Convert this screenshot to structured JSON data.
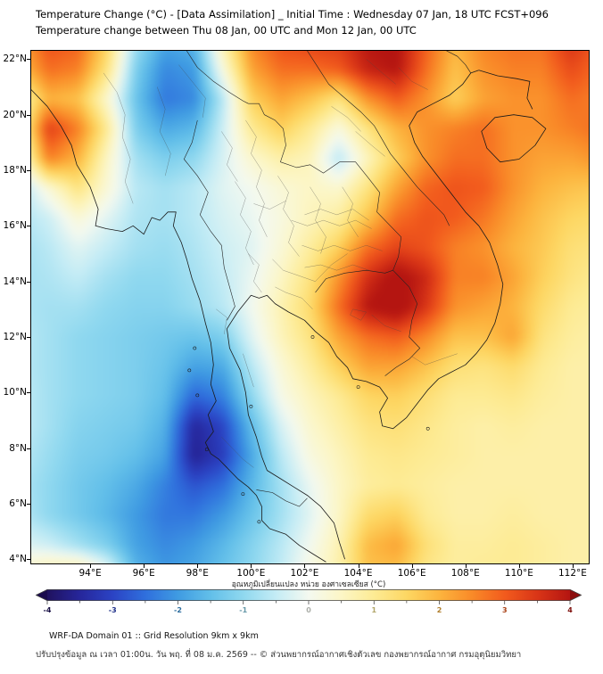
{
  "header": {
    "title": "Temperature Change (°C) - [Data Assimilation] _ Initial Time : Wednesday 07 Jan, 18 UTC FCST+096",
    "subtitle": "Temperature change between Thu 08 Jan, 00 UTC and Mon 12 Jan, 00 UTC"
  },
  "axes": {
    "lat_labels": [
      "22°N",
      "20°N",
      "18°N",
      "16°N",
      "14°N",
      "12°N",
      "10°N",
      "8°N",
      "6°N",
      "4°N"
    ],
    "lat_values": [
      22,
      20,
      18,
      16,
      14,
      12,
      10,
      8,
      6,
      4
    ],
    "lon_labels": [
      "94°E",
      "96°E",
      "98°E",
      "100°E",
      "102°E",
      "104°E",
      "106°E",
      "108°E",
      "110°E",
      "112°E"
    ],
    "lon_values": [
      94,
      96,
      98,
      100,
      102,
      104,
      106,
      108,
      110,
      112
    ]
  },
  "colorbar": {
    "label": "อุณหภูมิเปลี่ยนแปลง หน่วย องศาเซลเซียส (°C)",
    "min": -4,
    "max": 4,
    "major_ticks": [
      -4,
      -3,
      -2,
      -1,
      0,
      1,
      2,
      3,
      4
    ],
    "minor_tick_step": 0.5,
    "extend_low_color": "#1a0b4e",
    "extend_high_color": "#8c0d0d"
  },
  "footer": {
    "line1": "WRF-DA Domain 01 :: Grid Resolution 9km x 9km",
    "line2": "ปรับปรุงข้อมูล ณ เวลา 01:00น. วัน พฤ. ที่ 08 ม.ค. 2569 -- © ส่วนพยากรณ์อากาศเชิงตัวเลข กองพยากรณ์อากาศ กรมอุตุนิยมวิทยา"
  },
  "chart_data": {
    "type": "heatmap",
    "title": "Temperature change between Thu 08 Jan, 00 UTC and Mon 12 Jan, 00 UTC",
    "units": "°C",
    "value_range": [
      -4,
      4
    ],
    "extent": {
      "lon_min": 91.8,
      "lon_max": 112.6,
      "lat_min": 3.85,
      "lat_max": 22.3
    },
    "lon": [
      92,
      93,
      94,
      95,
      96,
      97,
      98,
      99,
      100,
      101,
      102,
      103,
      104,
      105,
      106,
      107,
      108,
      109,
      110,
      111,
      112
    ],
    "lat": [
      22,
      21,
      20,
      19,
      18,
      17,
      16,
      15,
      14,
      13,
      12,
      11,
      10,
      9,
      8,
      7,
      6,
      5,
      4
    ],
    "values": [
      [
        2.2,
        3.2,
        3.0,
        1.6,
        -0.8,
        -1.8,
        -1.6,
        0.8,
        2.6,
        3.2,
        3.4,
        3.5,
        4.0,
        4.1,
        3.0,
        2.0,
        2.6,
        2.8,
        2.8,
        3.6,
        3.0
      ],
      [
        1.8,
        2.8,
        2.6,
        1.2,
        -1.2,
        -2.2,
        -2.0,
        0.2,
        2.2,
        2.8,
        2.8,
        3.0,
        3.8,
        4.0,
        2.8,
        1.8,
        2.4,
        2.6,
        2.6,
        3.2,
        2.8
      ],
      [
        0.6,
        2.0,
        1.8,
        0.4,
        -1.4,
        -2.4,
        -2.2,
        -0.6,
        1.6,
        2.2,
        1.8,
        1.2,
        2.4,
        3.0,
        2.4,
        1.6,
        2.2,
        2.4,
        2.4,
        2.8,
        2.6
      ],
      [
        0.5,
        3.4,
        2.6,
        1.0,
        -1.2,
        -1.8,
        -1.6,
        -0.4,
        1.0,
        1.6,
        1.0,
        0.2,
        1.2,
        2.0,
        2.4,
        2.6,
        2.8,
        2.4,
        2.4,
        2.6,
        2.8
      ],
      [
        0.0,
        2.6,
        2.0,
        0.5,
        -0.8,
        -1.2,
        -1.0,
        -0.3,
        0.4,
        0.8,
        0.6,
        -0.6,
        0.6,
        1.6,
        2.4,
        2.8,
        2.8,
        2.4,
        2.2,
        2.2,
        2.4
      ],
      [
        -0.7,
        0.3,
        1.2,
        0.3,
        -0.6,
        -0.8,
        -0.6,
        -0.2,
        0.0,
        0.3,
        0.5,
        0.4,
        1.2,
        2.2,
        2.9,
        3.1,
        3.0,
        2.4,
        2.0,
        1.8,
        1.7
      ],
      [
        -0.7,
        -0.4,
        0.3,
        -0.2,
        -0.7,
        -0.8,
        -0.6,
        -0.3,
        -0.1,
        0.2,
        0.6,
        0.9,
        1.8,
        2.8,
        3.1,
        3.0,
        2.7,
        2.2,
        1.8,
        1.5,
        1.4
      ],
      [
        -0.8,
        -0.6,
        -0.2,
        -0.5,
        -0.8,
        -0.9,
        -0.7,
        -0.4,
        -0.2,
        0.3,
        0.9,
        1.6,
        2.8,
        3.3,
        3.1,
        2.6,
        2.4,
        2.0,
        1.7,
        1.3,
        1.2
      ],
      [
        -0.8,
        -0.7,
        -0.5,
        -0.8,
        -1.0,
        -1.0,
        -0.8,
        -0.5,
        -0.1,
        0.5,
        1.2,
        2.4,
        3.6,
        4.2,
        3.7,
        2.6,
        2.6,
        2.2,
        1.6,
        1.2,
        1.0
      ],
      [
        -0.7,
        -0.8,
        -0.8,
        -1.0,
        -1.1,
        -1.1,
        -0.9,
        -0.6,
        0.0,
        0.7,
        1.4,
        2.8,
        4.0,
        4.3,
        3.5,
        2.4,
        2.2,
        2.0,
        1.4,
        1.0,
        0.9
      ],
      [
        -0.6,
        -0.8,
        -1.0,
        -1.1,
        -1.2,
        -1.3,
        -1.4,
        -1.2,
        -0.2,
        0.6,
        1.2,
        2.2,
        2.8,
        3.0,
        2.5,
        1.8,
        1.8,
        2.2,
        1.2,
        0.9,
        0.8
      ],
      [
        -0.6,
        -0.8,
        -1.0,
        -1.1,
        -1.2,
        -1.4,
        -1.9,
        -1.8,
        -0.6,
        0.3,
        0.9,
        1.6,
        2.2,
        2.2,
        1.8,
        1.3,
        1.2,
        1.4,
        1.0,
        0.8,
        0.8
      ],
      [
        -0.5,
        -0.8,
        -1.0,
        -1.1,
        -1.2,
        -1.5,
        -2.6,
        -2.3,
        -1.0,
        0.1,
        0.6,
        1.0,
        1.5,
        1.6,
        1.3,
        1.0,
        1.0,
        1.1,
        0.9,
        0.8,
        0.8
      ],
      [
        -0.5,
        -0.8,
        -1.1,
        -1.2,
        -1.3,
        -1.7,
        -3.5,
        -3.0,
        -1.5,
        -0.3,
        0.4,
        0.8,
        1.2,
        1.3,
        1.1,
        0.9,
        0.8,
        0.9,
        0.8,
        0.8,
        0.8
      ],
      [
        -0.6,
        -0.9,
        -1.2,
        -1.3,
        -1.5,
        -1.9,
        -3.6,
        -3.1,
        -1.8,
        -0.6,
        0.2,
        0.6,
        1.0,
        1.1,
        1.0,
        0.9,
        0.8,
        0.8,
        0.8,
        0.8,
        0.8
      ],
      [
        -0.7,
        -1.0,
        -1.3,
        -1.5,
        -1.8,
        -2.3,
        -2.8,
        -2.5,
        -1.6,
        -0.8,
        -0.1,
        0.5,
        0.9,
        1.0,
        0.9,
        0.8,
        0.8,
        0.8,
        0.8,
        0.8,
        0.8
      ],
      [
        -0.6,
        -1.0,
        -1.3,
        -1.6,
        -2.0,
        -2.4,
        -2.4,
        -2.0,
        -1.4,
        -0.8,
        -0.2,
        0.5,
        1.4,
        1.6,
        1.0,
        0.8,
        0.8,
        0.9,
        0.8,
        0.8,
        0.8
      ],
      [
        -0.2,
        -0.4,
        -0.8,
        -1.2,
        -1.9,
        -2.2,
        -2.0,
        -1.6,
        -1.1,
        -0.6,
        0.0,
        0.7,
        1.9,
        2.2,
        1.3,
        0.9,
        0.9,
        1.0,
        0.9,
        0.8,
        0.8
      ],
      [
        0.5,
        1.0,
        1.2,
        0.2,
        -1.6,
        -2.0,
        -1.8,
        -1.4,
        -1.0,
        -0.5,
        0.2,
        0.8,
        1.8,
        1.8,
        1.1,
        0.9,
        1.0,
        1.0,
        0.9,
        0.8,
        0.8
      ]
    ],
    "colormap": [
      [
        -4.0,
        "#20125f"
      ],
      [
        -3.5,
        "#26269b"
      ],
      [
        -3.0,
        "#2b43c4"
      ],
      [
        -2.5,
        "#2f6fdd"
      ],
      [
        -2.0,
        "#3f9be2"
      ],
      [
        -1.5,
        "#62bfe9"
      ],
      [
        -1.0,
        "#8fd8ef"
      ],
      [
        -0.5,
        "#c4ecf5"
      ],
      [
        0.0,
        "#f4f9f0"
      ],
      [
        0.5,
        "#fcf6c6"
      ],
      [
        1.0,
        "#fdeb94"
      ],
      [
        1.5,
        "#fdd763"
      ],
      [
        2.0,
        "#fcb43e"
      ],
      [
        2.5,
        "#f98a28"
      ],
      [
        3.0,
        "#f25b1d"
      ],
      [
        3.5,
        "#d93517"
      ],
      [
        4.0,
        "#b41511"
      ]
    ],
    "legend_position": "bottom",
    "grid": false
  }
}
